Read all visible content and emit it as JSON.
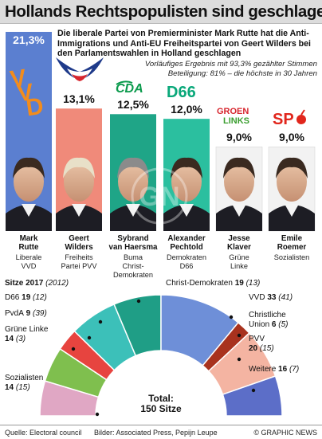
{
  "title": "Hollands Rechtspopulisten sind geschlagen",
  "intro": "Die liberale Partei von Premierminister Mark Rutte hat die Anti-Immigrations und Anti-EU Freiheitspartei von Geert Wilders bei den Parlamentswahlen in Holland geschlagen",
  "subline1": "Vorläufiges Ergebnis mit 93,3% gezählter Stimmen",
  "subline2": "Beteiligung: 81% – die höchste in 30 Jahren",
  "seats_heading": "Sitze 2017",
  "seats_heading_prev": "(2012)",
  "total_label": "Total:",
  "total_value": "150 Sitze",
  "footer": {
    "source": "Quelle: Electoral council",
    "pictures": "Bilder: Associated Press, Pepijn Leupe",
    "copyright": "© GRAPHIC NEWS"
  },
  "candidates": [
    {
      "name": "Mark Rutte",
      "name_l1": "Mark",
      "name_l2": "Rutte",
      "party_l1": "Liberale",
      "party_l2": "VVD",
      "party_l3": "",
      "pct": "21,3%",
      "logo": "VVD"
    },
    {
      "name": "Geert Wilders",
      "name_l1": "Geert",
      "name_l2": "Wilders",
      "party_l1": "Freiheits",
      "party_l2": "Partei PVV",
      "party_l3": "",
      "pct": "13,1%",
      "logo": "PVV bird"
    },
    {
      "name": "Sybrand van Haersma Buma",
      "name_l1": "Sybrand",
      "name_l2": "van Haersma",
      "party_l1": "Buma",
      "party_l2": "Christ-",
      "party_l3": "Demokraten",
      "pct": "12,5%",
      "logo": "CDA"
    },
    {
      "name": "Alexander Pechtold",
      "name_l1": "Alexander",
      "name_l2": "Pechtold",
      "party_l1": "Demokraten",
      "party_l2": "D66",
      "party_l3": "",
      "pct": "12,0%",
      "logo": "D66"
    },
    {
      "name": "Jesse Klaver",
      "name_l1": "Jesse",
      "name_l2": "Klaver",
      "party_l1": "Grüne",
      "party_l2": "Linke",
      "party_l3": "",
      "pct": "9,0%",
      "logo": "GROEN LINKS"
    },
    {
      "name": "Emile Roemer",
      "name_l1": "Emile",
      "name_l2": "Roemer",
      "party_l1": "Sozialisten",
      "party_l2": "",
      "party_l3": "",
      "pct": "9,0%",
      "logo": "SP"
    }
  ],
  "chart_data": [
    {
      "type": "bar",
      "title": "Vorläufiges Ergebnis",
      "categories": [
        "Mark Rutte",
        "Geert Wilders",
        "Sybrand van Haersma Buma",
        "Alexander Pechtold",
        "Jesse Klaver",
        "Emile Roemer"
      ],
      "values": [
        21.3,
        13.1,
        12.5,
        12.0,
        9.0,
        9.0
      ],
      "unit": "%",
      "colors": [
        "#5b7fd0",
        "#f08a7a",
        "#1fa587",
        "#2bbf9f",
        "#f2f2f2",
        "#f2f2f2"
      ]
    },
    {
      "type": "pie",
      "subtype": "half-donut",
      "title": "Sitze 2017",
      "categories": [
        "Sozialisten",
        "Grüne Linke",
        "PvdA",
        "D66",
        "Christ-Demokraten",
        "VVD",
        "Christliche Union",
        "PVV",
        "Weitere"
      ],
      "values": [
        14,
        14,
        9,
        19,
        19,
        33,
        6,
        20,
        16
      ],
      "values_2012": [
        15,
        3,
        39,
        12,
        13,
        41,
        5,
        15,
        7
      ],
      "colors": [
        "#e0a7c4",
        "#7fbf4e",
        "#e7443f",
        "#3cc0b9",
        "#1f9e86",
        "#6e8fd8",
        "#a8321e",
        "#f4b4a2",
        "#5c6ec8"
      ],
      "total": 150
    }
  ],
  "seat_labels": [
    {
      "party": "Sozialisten",
      "party_l1": "Sozialisten",
      "seats": "14",
      "prev": "(15)"
    },
    {
      "party": "Grüne Linke",
      "party_l1": "Grüne Linke",
      "seats": "14",
      "prev": "(3)"
    },
    {
      "party": "PvdA",
      "party_l1": "PvdA",
      "seats": "9",
      "prev": "(39)"
    },
    {
      "party": "D66",
      "party_l1": "D66",
      "seats": "19",
      "prev": "(12)"
    },
    {
      "party": "Christ-Demokraten",
      "party_l1": "Christ-Demokraten",
      "seats": "19",
      "prev": "(13)"
    },
    {
      "party": "VVD",
      "party_l1": "VVD",
      "seats": "33",
      "prev": "(41)"
    },
    {
      "party": "Christliche Union",
      "party_l1": "Christliche",
      "party_l2": "Union",
      "seats": "6",
      "prev": "(5)"
    },
    {
      "party": "PVV",
      "party_l1": "PVV",
      "seats": "20",
      "prev": "(15)"
    },
    {
      "party": "Weitere",
      "party_l1": "Weitere",
      "seats": "16",
      "prev": "(7)"
    }
  ],
  "watermark": "GN"
}
